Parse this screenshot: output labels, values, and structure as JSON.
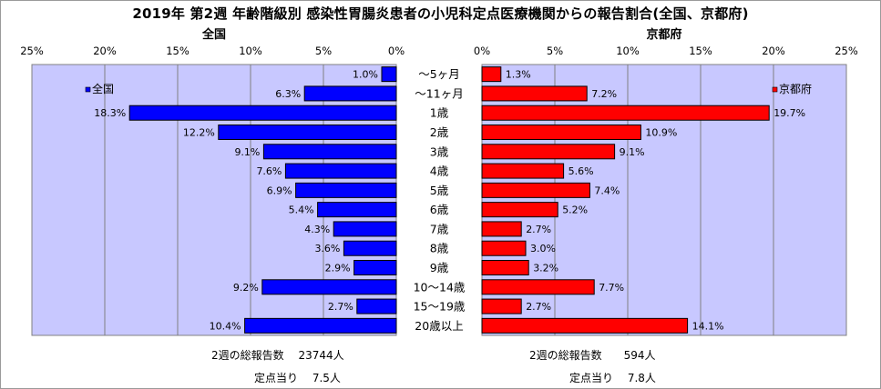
{
  "title": "2019年 第2週 年齢階級別 感染性胃腸炎患者の小児科定点医療機関からの報告割合(全国、京都府)",
  "colors": {
    "national": "#0000ff",
    "kyoto": "#ff0000",
    "plot_bg": "#c8c8ff"
  },
  "chart_data": [
    {
      "type": "bar",
      "orientation": "horizontal",
      "direction": "right-to-left",
      "title": "全国",
      "legend": "全国",
      "legend_position": "top-left",
      "categories": [
        "～5ヶ月",
        "～11ヶ月",
        "1歳",
        "2歳",
        "3歳",
        "4歳",
        "5歳",
        "6歳",
        "7歳",
        "8歳",
        "9歳",
        "10～14歳",
        "15～19歳",
        "20歳以上"
      ],
      "values": [
        1.0,
        6.3,
        18.3,
        12.2,
        9.1,
        7.6,
        6.9,
        5.4,
        4.3,
        3.6,
        2.9,
        9.2,
        2.7,
        10.4
      ],
      "value_labels": [
        "1.0%",
        "6.3%",
        "18.3%",
        "12.2%",
        "9.1%",
        "7.6%",
        "6.9%",
        "5.4%",
        "4.3%",
        "3.6%",
        "2.9%",
        "9.2%",
        "2.7%",
        "10.4%"
      ],
      "xlim": [
        0,
        25
      ],
      "ticks": [
        "0%",
        "5%",
        "10%",
        "15%",
        "20%",
        "25%"
      ],
      "grid": true
    },
    {
      "type": "bar",
      "orientation": "horizontal",
      "direction": "left-to-right",
      "title": "京都府",
      "legend": "京都府",
      "legend_position": "top-right",
      "categories": [
        "～5ヶ月",
        "～11ヶ月",
        "1歳",
        "2歳",
        "3歳",
        "4歳",
        "5歳",
        "6歳",
        "7歳",
        "8歳",
        "9歳",
        "10～14歳",
        "15～19歳",
        "20歳以上"
      ],
      "values": [
        1.3,
        7.2,
        19.7,
        10.9,
        9.1,
        5.6,
        7.4,
        5.2,
        2.7,
        3.0,
        3.2,
        7.7,
        2.7,
        14.1
      ],
      "value_labels": [
        "1.3%",
        "7.2%",
        "19.7%",
        "10.9%",
        "9.1%",
        "5.6%",
        "7.4%",
        "5.2%",
        "2.7%",
        "3.0%",
        "3.2%",
        "7.7%",
        "2.7%",
        "14.1%"
      ],
      "xlim": [
        0,
        25
      ],
      "ticks": [
        "0%",
        "5%",
        "10%",
        "15%",
        "20%",
        "25%"
      ],
      "grid": true
    }
  ],
  "footer": {
    "national_total": "2週の総報告数　 23744人",
    "national_per_site": "定点当り　 7.5人",
    "kyoto_total": "2週の総報告数　　594人",
    "kyoto_per_site": "定点当り　 7.8人"
  }
}
